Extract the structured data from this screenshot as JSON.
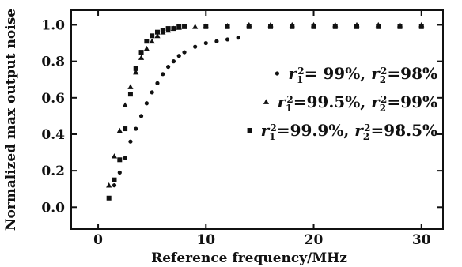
{
  "chart_data": {
    "type": "scatter",
    "xlabel": "Reference frequency/MHz",
    "ylabel": "Normalized max output noise",
    "xlim": [
      -2.5,
      32
    ],
    "ylim": [
      -0.12,
      1.08
    ],
    "xticks": [
      0,
      10,
      20,
      30
    ],
    "xtick_labels": [
      "0",
      "10",
      "20",
      "30"
    ],
    "yticks": [
      0.0,
      0.2,
      0.4,
      0.6,
      0.8,
      1.0
    ],
    "ytick_labels": [
      "0.0",
      "0.2",
      "0.4",
      "0.6",
      "0.8",
      "1.0"
    ],
    "grid": false,
    "legend_position": "right",
    "series": [
      {
        "name": "r₁² = 99%, r₂² = 98%",
        "label_parts": [
          "r",
          "1",
          "2",
          "= 99%, ",
          "r",
          "2",
          "2",
          "=98%"
        ],
        "marker": "dot",
        "x": [
          1,
          1.5,
          2,
          2.5,
          3,
          3.5,
          4,
          4.5,
          5,
          5.5,
          6,
          6.5,
          7,
          7.5,
          8,
          9,
          10,
          11,
          12,
          13
        ],
        "y": [
          0.05,
          0.12,
          0.19,
          0.27,
          0.36,
          0.43,
          0.5,
          0.57,
          0.63,
          0.68,
          0.73,
          0.77,
          0.8,
          0.83,
          0.85,
          0.88,
          0.9,
          0.91,
          0.92,
          0.93
        ]
      },
      {
        "name": "r₁² = 99.5%, r₂² = 99%",
        "label_parts": [
          "r",
          "1",
          "2",
          "=99.5%, ",
          "r",
          "2",
          "2",
          "=99%"
        ],
        "marker": "triangle",
        "x": [
          1,
          1.5,
          2,
          2.5,
          3,
          3.5,
          4,
          4.5,
          5,
          5.5,
          6,
          6.5,
          7,
          7.5,
          8,
          9,
          10,
          12,
          14,
          16,
          18,
          20,
          22,
          24,
          26,
          28,
          30
        ],
        "y": [
          0.12,
          0.28,
          0.42,
          0.56,
          0.66,
          0.74,
          0.82,
          0.87,
          0.91,
          0.94,
          0.96,
          0.97,
          0.98,
          0.985,
          0.99,
          0.99,
          0.995,
          0.995,
          1.0,
          1.0,
          1.0,
          1.0,
          1.0,
          1.0,
          1.0,
          1.0,
          1.0
        ]
      },
      {
        "name": "r₁² = 99.9%, r₂² = 98.5%",
        "label_parts": [
          "r",
          "1",
          "2",
          "=99.9%, ",
          "r",
          "2",
          "2",
          "=98.5%"
        ],
        "marker": "square",
        "x": [
          1,
          1.5,
          2,
          2.5,
          3,
          3.5,
          4,
          4.5,
          5,
          5.5,
          6,
          6.5,
          7,
          7.5,
          8,
          10,
          12,
          14,
          16,
          18,
          20,
          22,
          24,
          26,
          28,
          30
        ],
        "y": [
          0.05,
          0.15,
          0.26,
          0.43,
          0.62,
          0.76,
          0.85,
          0.91,
          0.94,
          0.96,
          0.97,
          0.98,
          0.98,
          0.99,
          0.99,
          0.99,
          0.99,
          0.99,
          0.99,
          0.99,
          0.99,
          0.99,
          0.99,
          0.99,
          0.99,
          0.99
        ]
      }
    ]
  }
}
